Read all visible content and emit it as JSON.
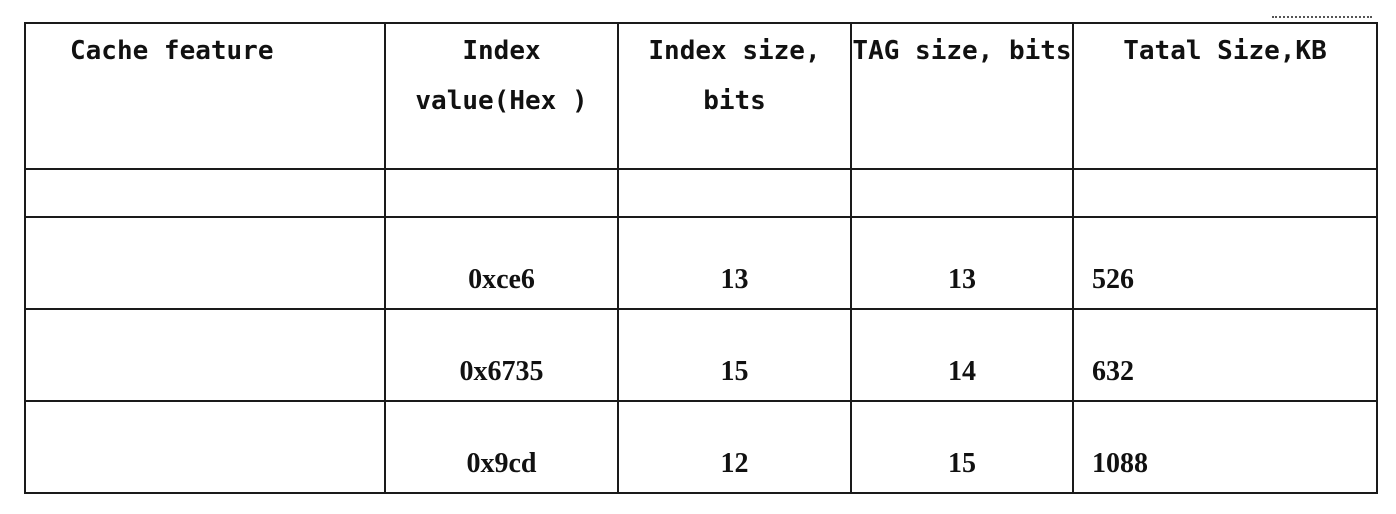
{
  "table": {
    "headers": [
      "Cache feature",
      "Index value(Hex )",
      "Index size, bits",
      "TAG size, bits",
      "Tatal Size,KB"
    ],
    "blank_row": [
      "",
      "",
      "",
      "",
      ""
    ],
    "rows": [
      {
        "feature": "",
        "index_hex": "0xce6",
        "index_bits": "13",
        "tag_bits": "13",
        "total_kb": "526"
      },
      {
        "feature": "",
        "index_hex": "0x6735",
        "index_bits": "15",
        "tag_bits": "14",
        "total_kb": "632"
      },
      {
        "feature": "",
        "index_hex": "0x9cd",
        "index_bits": "12",
        "tag_bits": "15",
        "total_kb": "1088"
      }
    ]
  }
}
